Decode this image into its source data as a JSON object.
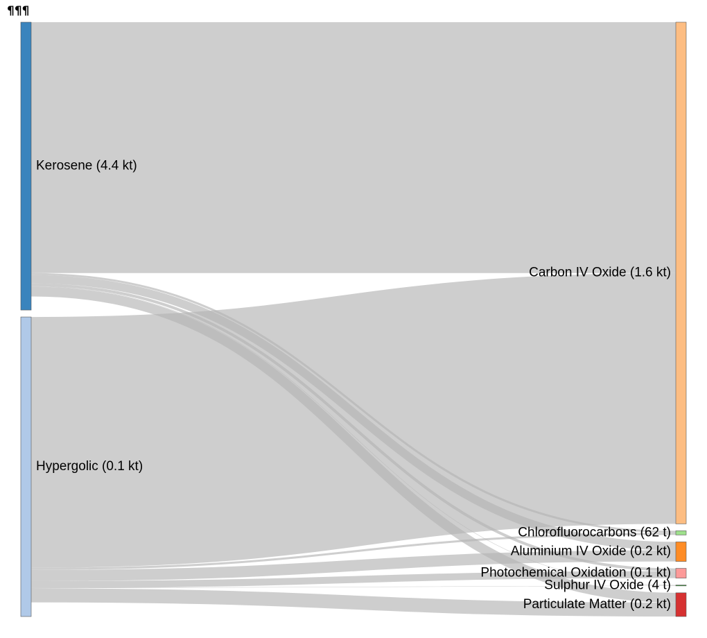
{
  "header": {
    "mark": "¶¶¶"
  },
  "chart_data": {
    "type": "sankey",
    "title": "",
    "colors": {
      "link": "#b4b4b4"
    },
    "sources": [
      {
        "id": "kerosene",
        "label": "Kerosene (4.4 kt)",
        "color": "#3a84bd"
      },
      {
        "id": "hypergolic",
        "label": "Hypergolic (0.1 kt)",
        "color": "#b0c9e8"
      }
    ],
    "targets": [
      {
        "id": "co2",
        "label": "Carbon IV Oxide (1.6 kt)",
        "color": "#fdbd82"
      },
      {
        "id": "cfc",
        "label": "Chlorofluorocarbons (62 t)",
        "color": "#9ee08c"
      },
      {
        "id": "al2o3",
        "label": "Aluminium IV Oxide (0.2 kt)",
        "color": "#ff8c25"
      },
      {
        "id": "pho",
        "label": "Photochemical Oxidation (0.1 kt)",
        "color": "#fd9a99"
      },
      {
        "id": "so2",
        "label": "Sulphur IV Oxide (4 t)",
        "color": "#32a02e"
      },
      {
        "id": "pm",
        "label": "Particulate Matter (0.2 kt)",
        "color": "#d63131"
      }
    ],
    "links": [
      {
        "source": "kerosene",
        "target": "co2",
        "value": 180
      },
      {
        "source": "kerosene",
        "target": "cfc",
        "value": 1.5
      },
      {
        "source": "kerosene",
        "target": "al2o3",
        "value": 6
      },
      {
        "source": "kerosene",
        "target": "pho",
        "value": 2
      },
      {
        "source": "kerosene",
        "target": "so2",
        "value": 0.3
      },
      {
        "source": "kerosene",
        "target": "pm",
        "value": 7
      },
      {
        "source": "hypergolic",
        "target": "co2",
        "value": 180
      },
      {
        "source": "hypergolic",
        "target": "cfc",
        "value": 1.5
      },
      {
        "source": "hypergolic",
        "target": "al2o3",
        "value": 8
      },
      {
        "source": "hypergolic",
        "target": "pho",
        "value": 5
      },
      {
        "source": "hypergolic",
        "target": "so2",
        "value": 0.3
      },
      {
        "source": "hypergolic",
        "target": "pm",
        "value": 10
      }
    ]
  }
}
